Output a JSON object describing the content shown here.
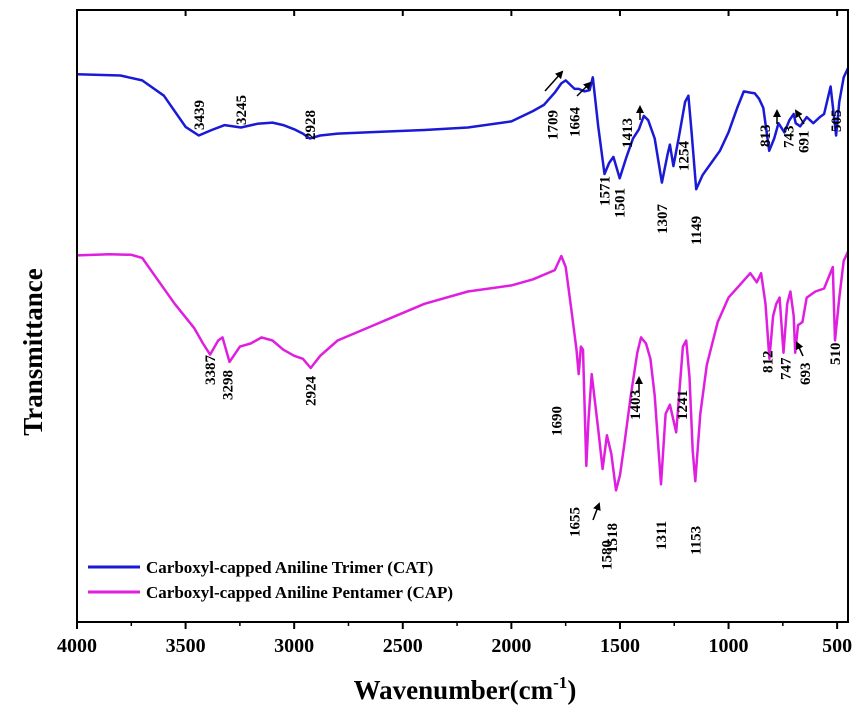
{
  "chart_data": {
    "type": "line",
    "xlabel": "Wavenumber(cm",
    "xlabel_sup": "-1",
    "xlabel_close": ")",
    "ylabel": "Transmittance",
    "xlim": [
      4000,
      450
    ],
    "x_reversed": true,
    "y_units": "offset transmittance (arbitrary, 0 = bottom of plot, 100 = top of plot)",
    "ylim": [
      0,
      100
    ],
    "xticks": [
      4000,
      3500,
      3000,
      2500,
      2000,
      1500,
      1000,
      500
    ],
    "xtick_labels": [
      "4000",
      "3500",
      "3000",
      "2500",
      "2000",
      "1500",
      "1000",
      "500"
    ],
    "grid": false,
    "legend_position": "bottom-left",
    "series": [
      {
        "name": "Carboxyl-capped Aniline Trimer (CAT)",
        "color": "#1a1ad6",
        "x": [
          4000,
          3800,
          3700,
          3600,
          3500,
          3439,
          3380,
          3320,
          3245,
          3170,
          3100,
          3050,
          3000,
          2960,
          2928,
          2880,
          2800,
          2600,
          2400,
          2200,
          2000,
          1900,
          1850,
          1800,
          1770,
          1750,
          1709,
          1690,
          1664,
          1640,
          1625,
          1600,
          1571,
          1550,
          1530,
          1501,
          1470,
          1440,
          1413,
          1390,
          1370,
          1340,
          1307,
          1280,
          1270,
          1254,
          1230,
          1200,
          1185,
          1170,
          1149,
          1120,
          1080,
          1040,
          1000,
          960,
          930,
          900,
          880,
          860,
          840,
          813,
          790,
          770,
          743,
          720,
          700,
          691,
          670,
          640,
          610,
          580,
          560,
          530,
          505,
          490,
          470,
          450
        ],
        "y": [
          89.5,
          89.3,
          88.5,
          86.0,
          80.9,
          79.5,
          80.4,
          81.2,
          80.8,
          81.4,
          81.6,
          81.2,
          80.5,
          79.8,
          79.0,
          79.5,
          79.8,
          80.1,
          80.4,
          80.8,
          81.8,
          83.5,
          84.5,
          86.5,
          88.0,
          88.5,
          87.1,
          87.1,
          86.7,
          86.9,
          89.0,
          81.0,
          73.2,
          75.0,
          76.0,
          72.5,
          76.0,
          79.0,
          80.5,
          82.7,
          82.0,
          79.0,
          71.8,
          76.5,
          78.0,
          74.5,
          79.0,
          85.0,
          86.0,
          80.0,
          70.7,
          73.0,
          75.0,
          77.0,
          80.0,
          84.0,
          86.7,
          86.5,
          86.4,
          85.5,
          84.0,
          77.0,
          79.0,
          81.5,
          80.0,
          82.0,
          83.0,
          81.5,
          81.0,
          82.5,
          81.5,
          82.5,
          83.0,
          87.5,
          79.5,
          85.0,
          89.0,
          90.5
        ]
      },
      {
        "name": "Carboxyl-capped Aniline Pentamer (CAP)",
        "color": "#e01ee0",
        "x": [
          4000,
          3850,
          3750,
          3700,
          3650,
          3550,
          3460,
          3420,
          3387,
          3350,
          3330,
          3298,
          3250,
          3200,
          3150,
          3100,
          3050,
          3000,
          2960,
          2924,
          2880,
          2800,
          2600,
          2400,
          2200,
          2000,
          1900,
          1800,
          1770,
          1750,
          1720,
          1700,
          1690,
          1680,
          1670,
          1655,
          1645,
          1630,
          1600,
          1580,
          1560,
          1540,
          1518,
          1500,
          1480,
          1450,
          1420,
          1403,
          1380,
          1360,
          1340,
          1311,
          1290,
          1270,
          1241,
          1210,
          1195,
          1180,
          1165,
          1153,
          1130,
          1100,
          1050,
          1000,
          950,
          900,
          870,
          850,
          830,
          812,
          795,
          780,
          765,
          747,
          730,
          715,
          700,
          693,
          680,
          660,
          640,
          600,
          560,
          520,
          510,
          490,
          470,
          450
        ],
        "y": [
          59.9,
          60.1,
          60.0,
          59.5,
          57.0,
          52.0,
          48.0,
          45.5,
          43.7,
          46.0,
          46.5,
          42.5,
          45.0,
          45.5,
          46.5,
          46.0,
          44.5,
          43.5,
          43.0,
          41.5,
          43.5,
          46.0,
          49.0,
          52.0,
          54.0,
          55.0,
          56.0,
          57.5,
          59.8,
          58.0,
          50.0,
          44.5,
          40.5,
          45.0,
          44.5,
          25.5,
          33.0,
          40.5,
          31.5,
          25.0,
          30.5,
          27.5,
          21.5,
          24.0,
          29.0,
          37.0,
          44.0,
          46.5,
          45.5,
          43.0,
          37.0,
          22.5,
          34.0,
          35.5,
          31.0,
          45.0,
          46.0,
          40.0,
          28.0,
          23.0,
          34.0,
          42.0,
          49.0,
          53.0,
          55.0,
          57.0,
          55.5,
          57.0,
          52.0,
          43.0,
          50.0,
          52.0,
          53.0,
          44.0,
          52.0,
          54.0,
          50.0,
          44.0,
          48.5,
          49.0,
          53.0,
          54.0,
          54.5,
          58.0,
          46.0,
          53.0,
          59.0,
          60.5
        ]
      }
    ],
    "annotations": {
      "trimer": [
        {
          "label": "3439",
          "x": 3439
        },
        {
          "label": "3245",
          "x": 3245
        },
        {
          "label": "2928",
          "x": 2928
        },
        {
          "label": "1709",
          "x": 1709,
          "arrow": true
        },
        {
          "label": "1664",
          "x": 1664,
          "arrow": true
        },
        {
          "label": "1571",
          "x": 1571
        },
        {
          "label": "1501",
          "x": 1501
        },
        {
          "label": "1413",
          "x": 1413,
          "arrow": true
        },
        {
          "label": "1307",
          "x": 1307
        },
        {
          "label": "1254",
          "x": 1254
        },
        {
          "label": "1149",
          "x": 1149
        },
        {
          "label": "813",
          "x": 813
        },
        {
          "label": "743",
          "x": 743,
          "arrow": true
        },
        {
          "label": "691",
          "x": 691,
          "arrow": true
        },
        {
          "label": "505",
          "x": 505
        }
      ],
      "pentamer": [
        {
          "label": "3387",
          "x": 3387
        },
        {
          "label": "3298",
          "x": 3298
        },
        {
          "label": "2924",
          "x": 2924
        },
        {
          "label": "1690",
          "x": 1690
        },
        {
          "label": "1655",
          "x": 1655
        },
        {
          "label": "1580",
          "x": 1580,
          "arrow": true
        },
        {
          "label": "1518",
          "x": 1518
        },
        {
          "label": "1403",
          "x": 1403,
          "arrow": true
        },
        {
          "label": "1311",
          "x": 1311
        },
        {
          "label": "1241",
          "x": 1241
        },
        {
          "label": "1153",
          "x": 1153
        },
        {
          "label": "812",
          "x": 812
        },
        {
          "label": "747",
          "x": 747
        },
        {
          "label": "693",
          "x": 693,
          "arrow": true
        },
        {
          "label": "510",
          "x": 510
        }
      ]
    }
  }
}
